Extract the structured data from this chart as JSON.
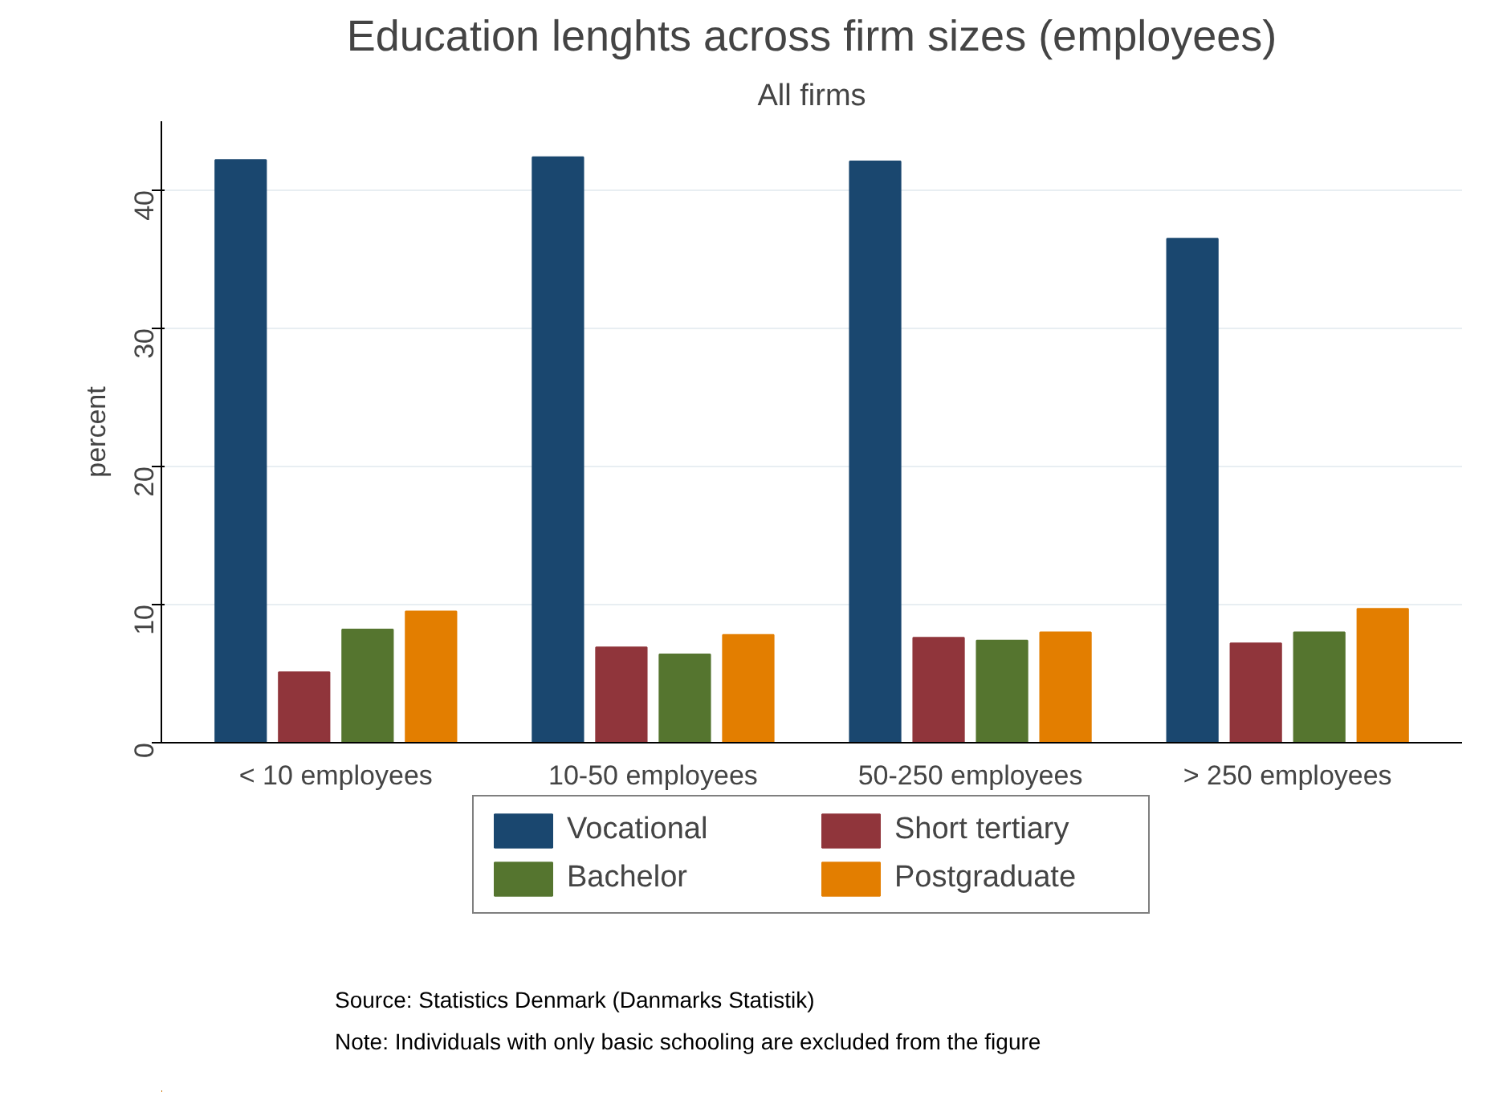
{
  "chart_data": {
    "type": "bar",
    "title": "Education lenghts across firm sizes (employees)",
    "subtitle": "All firms",
    "ylabel": "percent",
    "categories": [
      "< 10 employees",
      "10-50 employees",
      "50-250 employees",
      "> 250 employees"
    ],
    "series": [
      {
        "name": "Vocational",
        "color": "#1a476f",
        "values": [
          42.2,
          42.4,
          42.1,
          36.5
        ]
      },
      {
        "name": "Short tertiary",
        "color": "#90353b",
        "values": [
          5.1,
          6.9,
          7.6,
          7.2
        ]
      },
      {
        "name": "Bachelor",
        "color": "#55752f",
        "values": [
          8.2,
          6.4,
          7.4,
          8.0
        ]
      },
      {
        "name": "Postgraduate",
        "color": "#e37e00",
        "values": [
          9.5,
          7.8,
          8.0,
          9.7
        ]
      }
    ],
    "ylim": [
      0,
      45
    ],
    "yticks": [
      0,
      10,
      20,
      30,
      40
    ],
    "grid": "y",
    "legend": "bottom",
    "annotations": [
      "Source: Statistics Denmark (Danmarks Statistik)",
      "Note: Individuals with only basic schooling are excluded from the figure"
    ]
  }
}
